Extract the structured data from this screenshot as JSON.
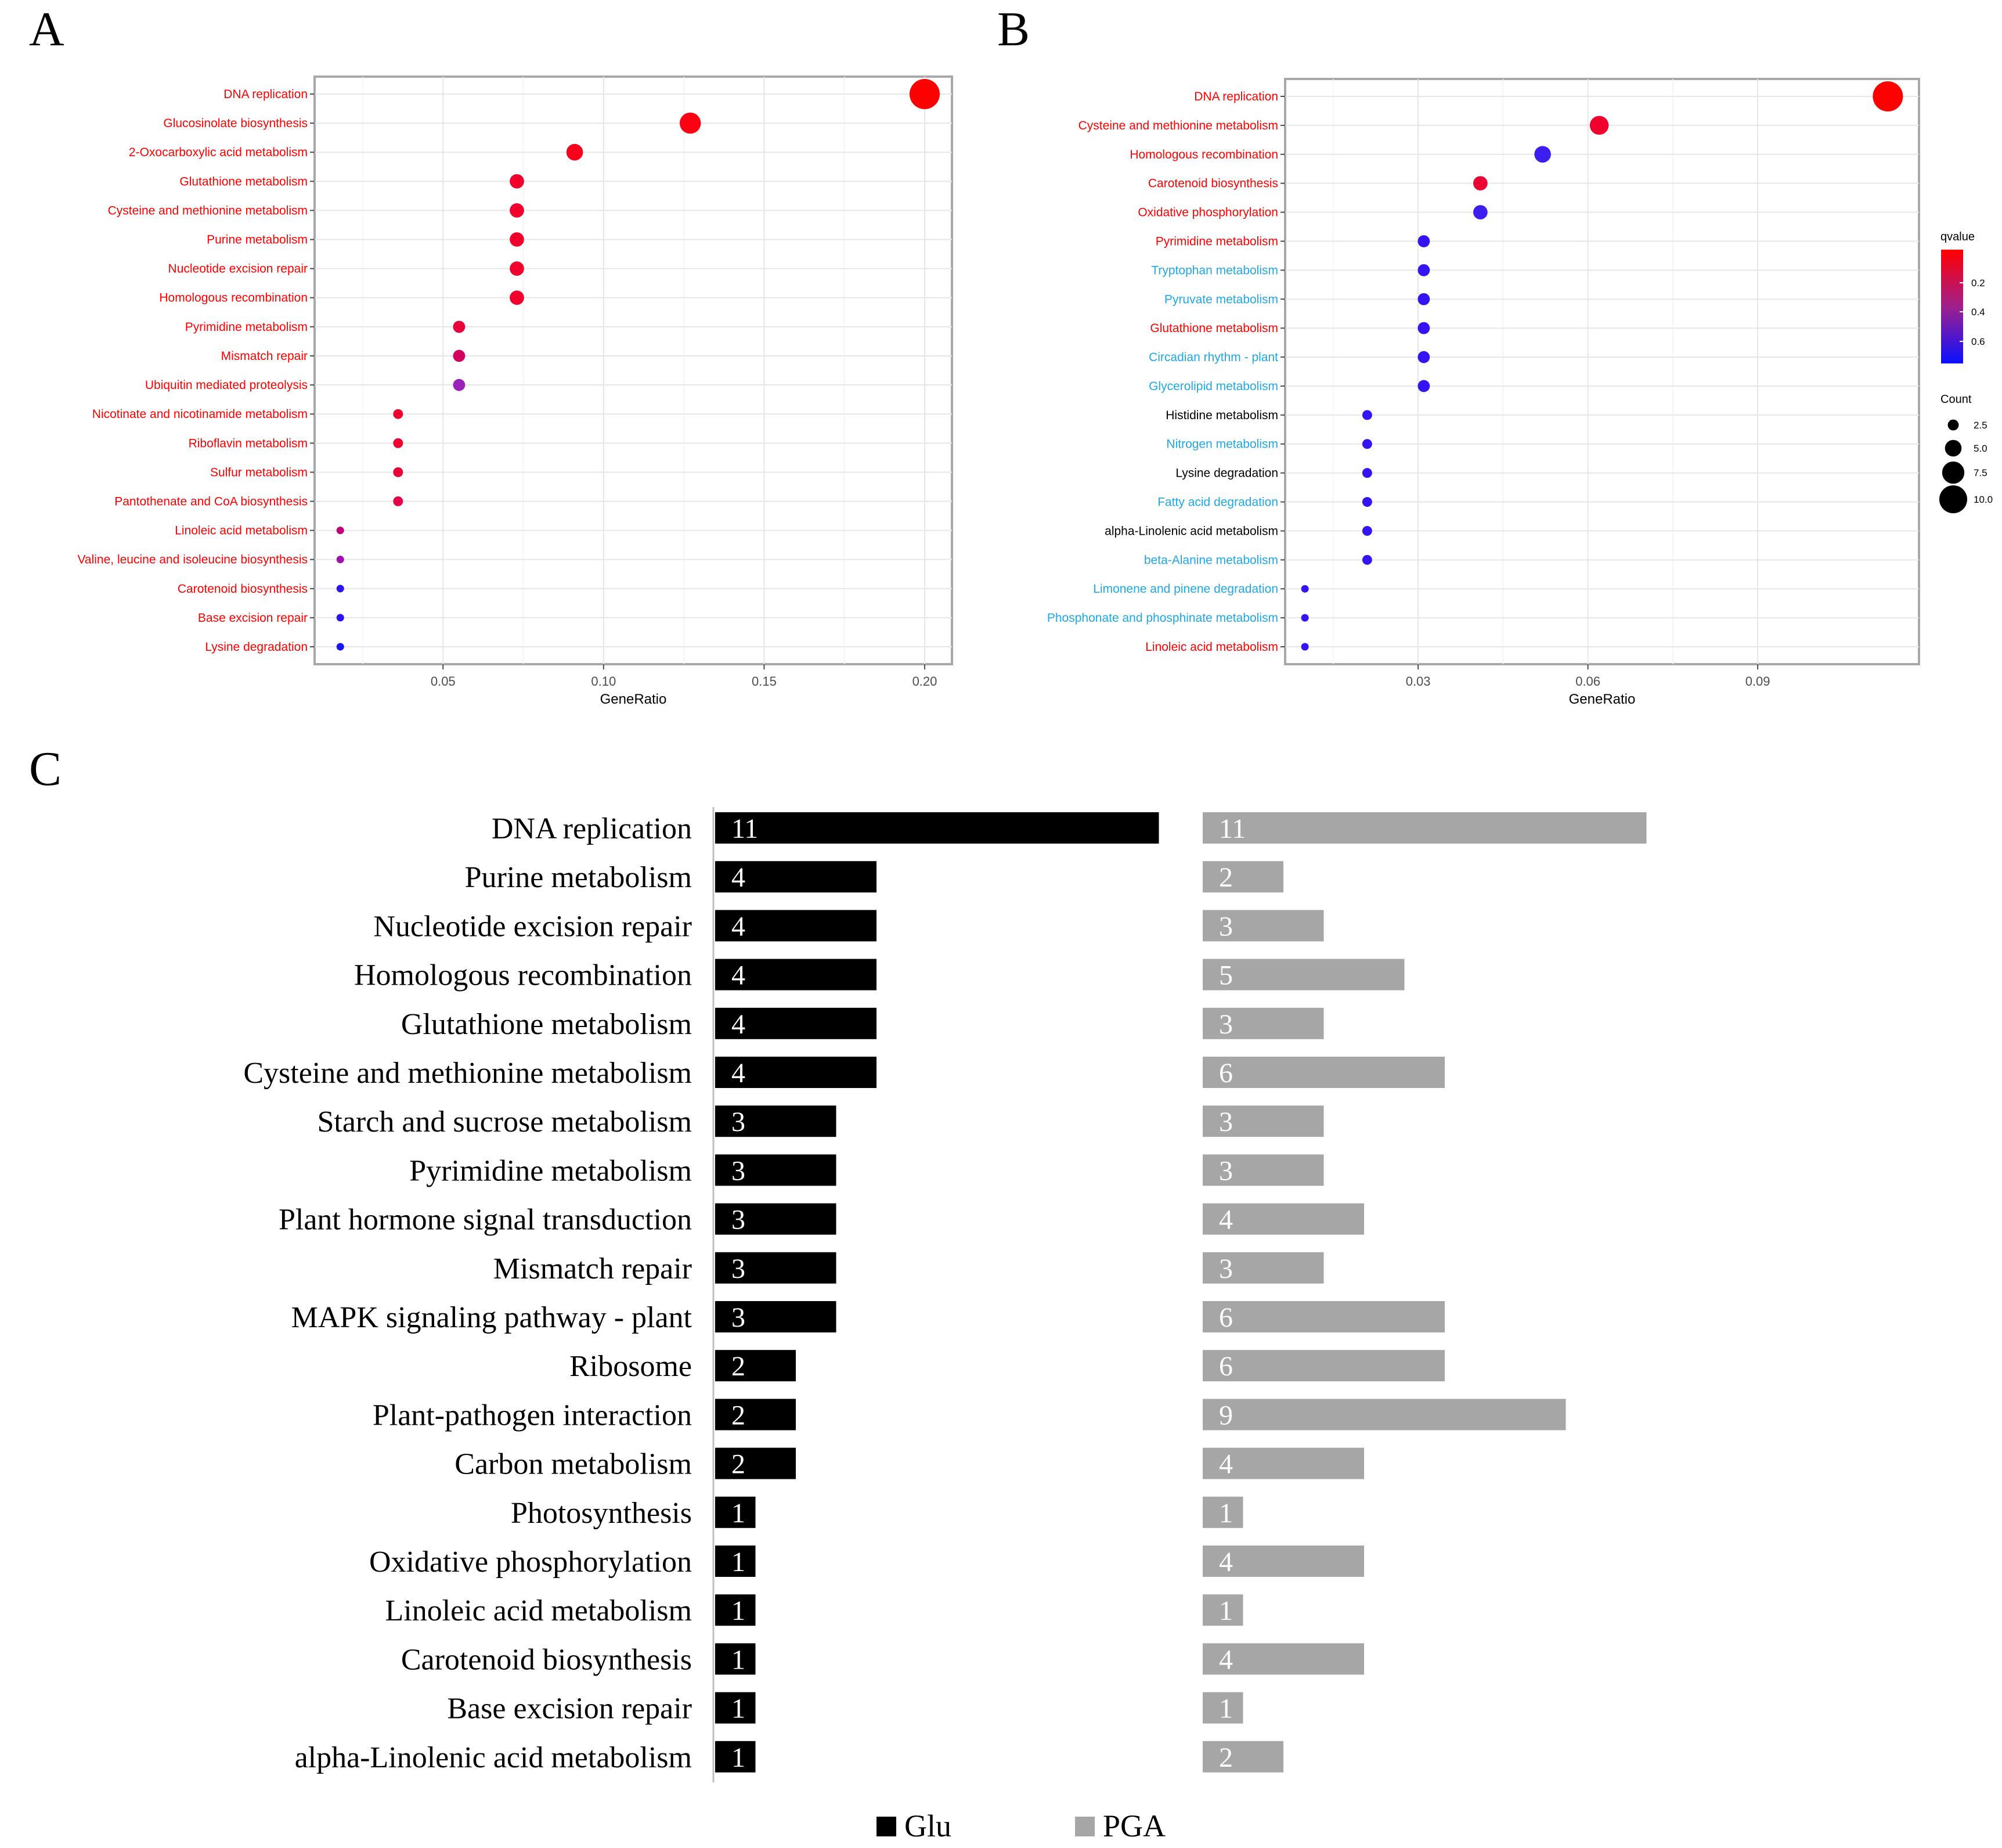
{
  "chart_data": [
    {
      "panel": "A",
      "type": "scatter",
      "xlabel": "GeneRatio",
      "xlim": [
        0.01,
        0.2085
      ],
      "xticks": [
        0.05,
        0.1,
        0.15,
        0.2
      ],
      "xtick_labels": [
        "0.05",
        "0.10",
        "0.15",
        "0.20"
      ],
      "points": [
        {
          "term": "DNA replication",
          "gene_ratio": 0.2,
          "count": 11,
          "color": "#ff0000",
          "label_color": "#ff0000"
        },
        {
          "term": "Glucosinolate biosynthesis",
          "gene_ratio": 0.127,
          "count": 7,
          "color": "#ff0012",
          "label_color": "#ff0000"
        },
        {
          "term": "2-Oxocarboxylic acid metabolism",
          "gene_ratio": 0.091,
          "count": 5,
          "color": "#fa001c",
          "label_color": "#ff0000"
        },
        {
          "term": "Glutathione metabolism",
          "gene_ratio": 0.073,
          "count": 4,
          "color": "#f2002c",
          "label_color": "#ff0000"
        },
        {
          "term": "Cysteine and methionine metabolism",
          "gene_ratio": 0.073,
          "count": 4,
          "color": "#f2002c",
          "label_color": "#ff0000"
        },
        {
          "term": "Purine metabolism",
          "gene_ratio": 0.073,
          "count": 4,
          "color": "#f2002c",
          "label_color": "#ff0000"
        },
        {
          "term": "Nucleotide excision repair",
          "gene_ratio": 0.073,
          "count": 4,
          "color": "#f2002c",
          "label_color": "#ff0000"
        },
        {
          "term": "Homologous recombination",
          "gene_ratio": 0.073,
          "count": 4,
          "color": "#f2002c",
          "label_color": "#ff0000"
        },
        {
          "term": "Pyrimidine metabolism",
          "gene_ratio": 0.055,
          "count": 3,
          "color": "#ea0038",
          "label_color": "#ff0000"
        },
        {
          "term": "Mismatch repair",
          "gene_ratio": 0.055,
          "count": 3,
          "color": "#d4005e",
          "label_color": "#ff0000"
        },
        {
          "term": "Ubiquitin mediated proteolysis",
          "gene_ratio": 0.055,
          "count": 3,
          "color": "#9a22b8",
          "label_color": "#ff0000"
        },
        {
          "term": "Nicotinate and nicotinamide metabolism",
          "gene_ratio": 0.036,
          "count": 2,
          "color": "#ee0030",
          "label_color": "#ff0000"
        },
        {
          "term": "Riboflavin metabolism",
          "gene_ratio": 0.036,
          "count": 2,
          "color": "#ee0030",
          "label_color": "#ff0000"
        },
        {
          "term": "Sulfur metabolism",
          "gene_ratio": 0.036,
          "count": 2,
          "color": "#ea0038",
          "label_color": "#ff0000"
        },
        {
          "term": "Pantothenate and CoA biosynthesis",
          "gene_ratio": 0.036,
          "count": 2,
          "color": "#e30048",
          "label_color": "#ff0000"
        },
        {
          "term": "Linoleic acid metabolism",
          "gene_ratio": 0.018,
          "count": 1,
          "color": "#c00078",
          "label_color": "#ff0000"
        },
        {
          "term": "Valine, leucine and isoleucine biosynthesis",
          "gene_ratio": 0.018,
          "count": 1,
          "color": "#9e10b0",
          "label_color": "#ff0000"
        },
        {
          "term": "Carotenoid biosynthesis",
          "gene_ratio": 0.018,
          "count": 1,
          "color": "#2a14f0",
          "label_color": "#ff0000"
        },
        {
          "term": "Base excision repair",
          "gene_ratio": 0.018,
          "count": 1,
          "color": "#2a14f0",
          "label_color": "#ff0000"
        },
        {
          "term": "Lysine degradation",
          "gene_ratio": 0.018,
          "count": 1,
          "color": "#1a14f8",
          "label_color": "#ff0000"
        }
      ]
    },
    {
      "panel": "B",
      "type": "scatter",
      "xlabel": "GeneRatio",
      "xlim": [
        0.0065,
        0.1185
      ],
      "xticks": [
        0.03,
        0.06,
        0.09
      ],
      "xtick_labels": [
        "0.03",
        "0.06",
        "0.09"
      ],
      "points": [
        {
          "term": "DNA replication",
          "gene_ratio": 0.113,
          "count": 11,
          "color": "#ff0000",
          "label_color": "#ff0000"
        },
        {
          "term": "Cysteine and methionine metabolism",
          "gene_ratio": 0.062,
          "count": 6,
          "color": "#f0002c",
          "label_color": "#ff0000"
        },
        {
          "term": "Homologous recombination",
          "gene_ratio": 0.052,
          "count": 5,
          "color": "#3c1ef0",
          "label_color": "#ff0000"
        },
        {
          "term": "Carotenoid biosynthesis",
          "gene_ratio": 0.041,
          "count": 4,
          "color": "#ec0034",
          "label_color": "#ff0000"
        },
        {
          "term": "Oxidative phosphorylation",
          "gene_ratio": 0.041,
          "count": 4,
          "color": "#3c1ef0",
          "label_color": "#ff0000"
        },
        {
          "term": "Pyrimidine metabolism",
          "gene_ratio": 0.031,
          "count": 3,
          "color": "#3214f4",
          "label_color": "#ff0000"
        },
        {
          "term": "Tryptophan metabolism",
          "gene_ratio": 0.031,
          "count": 3,
          "color": "#3214f4",
          "label_color": "#1ea8e8"
        },
        {
          "term": "Pyruvate metabolism",
          "gene_ratio": 0.031,
          "count": 3,
          "color": "#3214f4",
          "label_color": "#1ea8e8"
        },
        {
          "term": "Glutathione metabolism",
          "gene_ratio": 0.031,
          "count": 3,
          "color": "#3214f4",
          "label_color": "#ff0000"
        },
        {
          "term": "Circadian rhythm - plant",
          "gene_ratio": 0.031,
          "count": 3,
          "color": "#3214f4",
          "label_color": "#1ea8e8"
        },
        {
          "term": "Glycerolipid metabolism",
          "gene_ratio": 0.031,
          "count": 3,
          "color": "#3214f4",
          "label_color": "#1ea8e8"
        },
        {
          "term": "Histidine metabolism",
          "gene_ratio": 0.021,
          "count": 2,
          "color": "#3214f4",
          "label_color": "#000000"
        },
        {
          "term": "Nitrogen metabolism",
          "gene_ratio": 0.021,
          "count": 2,
          "color": "#3214f4",
          "label_color": "#1ea8e8"
        },
        {
          "term": "Lysine degradation",
          "gene_ratio": 0.021,
          "count": 2,
          "color": "#3214f4",
          "label_color": "#000000"
        },
        {
          "term": "Fatty acid degradation",
          "gene_ratio": 0.021,
          "count": 2,
          "color": "#3214f4",
          "label_color": "#1ea8e8"
        },
        {
          "term": "alpha-Linolenic acid metabolism",
          "gene_ratio": 0.021,
          "count": 2,
          "color": "#3214f4",
          "label_color": "#000000"
        },
        {
          "term": "beta-Alanine metabolism",
          "gene_ratio": 0.021,
          "count": 2,
          "color": "#3214f4",
          "label_color": "#1ea8e8"
        },
        {
          "term": "Limonene and pinene degradation",
          "gene_ratio": 0.01,
          "count": 1,
          "color": "#3214f4",
          "label_color": "#1ea8e8"
        },
        {
          "term": "Phosphonate and phosphinate metabolism",
          "gene_ratio": 0.01,
          "count": 1,
          "color": "#3214f4",
          "label_color": "#1ea8e8"
        },
        {
          "term": "Linoleic acid metabolism",
          "gene_ratio": 0.01,
          "count": 1,
          "color": "#3214f4",
          "label_color": "#ff0000"
        }
      ],
      "legend": {
        "color_title": "qvalue",
        "color_ticks": [
          "0.2",
          "0.4",
          "0.6"
        ],
        "size_title": "Count",
        "size_ticks": [
          "2.5",
          "5.0",
          "7.5",
          "10.0"
        ]
      }
    },
    {
      "panel": "C",
      "type": "bar",
      "orientation": "horizontal",
      "categories": [
        "DNA replication",
        "Purine metabolism",
        "Nucleotide excision repair",
        "Homologous recombination",
        "Glutathione metabolism",
        "Cysteine and methionine metabolism",
        "Starch and sucrose metabolism",
        "Pyrimidine metabolism",
        "Plant hormone signal transduction",
        "Mismatch repair",
        "MAPK signaling pathway - plant",
        "Ribosome",
        "Plant-pathogen interaction",
        "Carbon metabolism",
        "Photosynthesis",
        "Oxidative phosphorylation",
        "Linoleic acid metabolism",
        "Carotenoid biosynthesis",
        "Base excision repair",
        "alpha-Linolenic acid metabolism"
      ],
      "series": [
        {
          "name": "Glu",
          "color": "#000000",
          "values": [
            11,
            4,
            4,
            4,
            4,
            4,
            3,
            3,
            3,
            3,
            3,
            2,
            2,
            2,
            1,
            1,
            1,
            1,
            1,
            1
          ]
        },
        {
          "name": "PGA",
          "color": "#a6a6a6",
          "values": [
            11,
            2,
            3,
            5,
            3,
            6,
            3,
            3,
            4,
            3,
            6,
            6,
            9,
            4,
            1,
            4,
            1,
            4,
            1,
            2
          ]
        }
      ]
    }
  ],
  "panel_labels": {
    "a": "A",
    "b": "B",
    "c": "C"
  }
}
